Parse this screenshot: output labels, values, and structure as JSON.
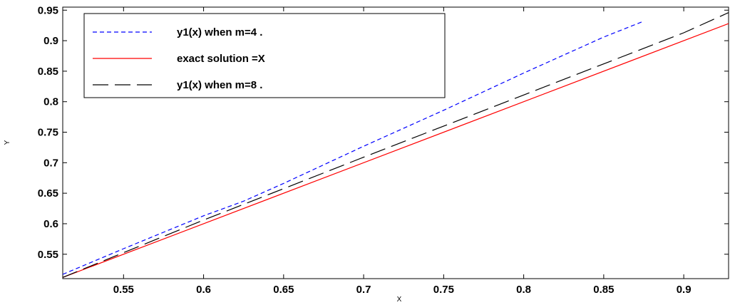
{
  "chart_data": {
    "type": "line",
    "xlabel": "X",
    "ylabel": "Y",
    "xlim": [
      0.512,
      0.928
    ],
    "ylim": [
      0.51,
      0.955
    ],
    "x_ticks": [
      0.55,
      0.6,
      0.65,
      0.7,
      0.75,
      0.8,
      0.85,
      0.9
    ],
    "x_tick_labels": [
      "0.55",
      "0.6",
      "0.65",
      "0.7",
      "0.75",
      "0.8",
      "0.85",
      "0.9"
    ],
    "y_ticks": [
      0.55,
      0.6,
      0.65,
      0.7,
      0.75,
      0.8,
      0.85,
      0.9,
      0.95
    ],
    "y_tick_labels": [
      "0.55",
      "0.6",
      "0.65",
      "0.7",
      "0.75",
      "0.8",
      "0.85",
      "0.9",
      "0.95"
    ],
    "grid": false,
    "legend_position": "top-left",
    "series": [
      {
        "name": "y1(x) when m=4 .",
        "color": "#0000ff",
        "dash": "short-dash",
        "x": [
          0.512,
          0.55,
          0.6,
          0.625,
          0.65,
          0.7,
          0.75,
          0.8,
          0.85,
          0.875
        ],
        "y": [
          0.517,
          0.559,
          0.613,
          0.637,
          0.666,
          0.727,
          0.786,
          0.847,
          0.906,
          0.932
        ]
      },
      {
        "name": "exact solution =X",
        "color": "#ff0000",
        "dash": "solid",
        "x": [
          0.512,
          0.928
        ],
        "y": [
          0.512,
          0.928
        ]
      },
      {
        "name": "y1(x) when m=8 .",
        "color": "#000000",
        "dash": "long-dash",
        "x": [
          0.512,
          0.6,
          0.7,
          0.8,
          0.9,
          0.928
        ],
        "y": [
          0.512,
          0.606,
          0.709,
          0.811,
          0.913,
          0.946
        ]
      }
    ]
  }
}
